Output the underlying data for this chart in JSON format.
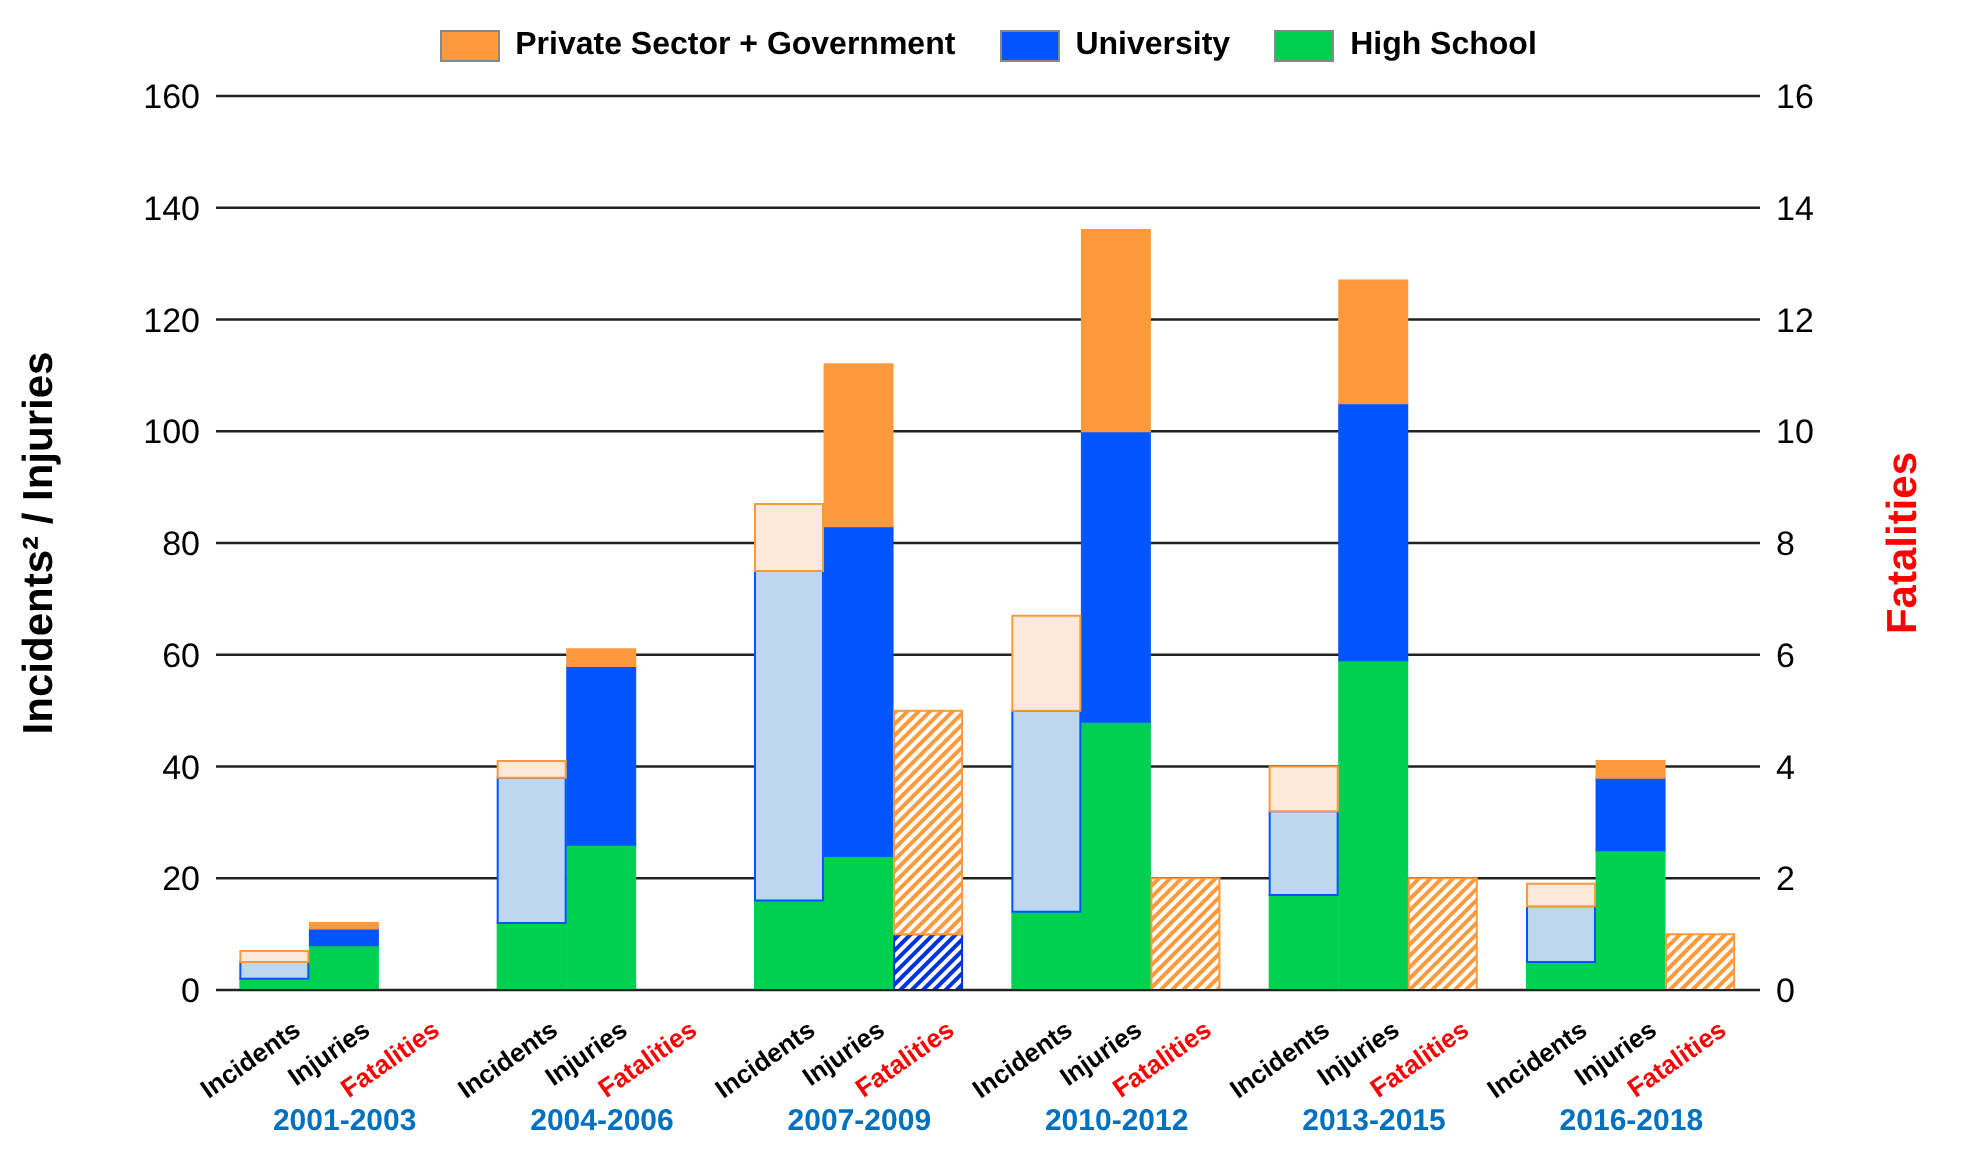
{
  "chart_data": {
    "type": "bar",
    "stacked": true,
    "ylabel": "Incidents² / Injuries",
    "y2label": "Fatalities",
    "categories": [
      "Incidents",
      "Injuries",
      "Fatalities",
      "Incidents",
      "Injuries",
      "Fatalities",
      "Incidents",
      "Injuries",
      "Fatalities",
      "Incidents",
      "Injuries",
      "Fatalities",
      "Incidents",
      "Injuries",
      "Fatalities",
      "Incidents",
      "Injuries",
      "Fatalities"
    ],
    "annotations": [
      "2001-2003",
      "2004-2006",
      "2007-2009",
      "2010-2012",
      "2013-2015",
      "2016-2018"
    ],
    "series": [
      {
        "name": "High School",
        "color": "#00d050",
        "colors": [
          "#00d050",
          "#00d050",
          null,
          "#00d050",
          "#00d050",
          null,
          "#00d050",
          "#00d050",
          null,
          "#00d050",
          "#00d050",
          null,
          "#00d050",
          "#00d050",
          null,
          "#00d050",
          "#00d050",
          null
        ],
        "values": [
          2,
          8,
          null,
          12,
          26,
          null,
          16,
          24,
          null,
          14,
          48,
          null,
          17,
          59,
          null,
          5,
          25,
          null
        ]
      },
      {
        "name": "University",
        "color": "#0055ff",
        "colors": [
          "#bdd7ee",
          "#0055ff",
          null,
          "#bdd7ee",
          "#0055ff",
          null,
          "#bdd7ee",
          "#0055ff",
          null,
          "#bdd7ee",
          "#0055ff",
          null,
          "#bdd7ee",
          "#0055ff",
          null,
          "#bdd7ee",
          "#0055ff",
          null
        ],
        "values": [
          3,
          3,
          null,
          26,
          32,
          null,
          59,
          59,
          null,
          36,
          52,
          null,
          15,
          46,
          null,
          10,
          13,
          null
        ]
      },
      {
        "name": "Private Sector + Government",
        "color": "#ff9a3c",
        "colors": [
          "#fde9d9",
          "#ff9a3c",
          null,
          "#fde9d9",
          "#ff9a3c",
          null,
          "#fde9d9",
          "#ff9a3c",
          null,
          "#fde9d9",
          "#ff9a3c",
          null,
          "#fde9d9",
          "#ff9a3c",
          null,
          "#fde9d9",
          "#ff9a3c",
          null
        ],
        "values": [
          2,
          1,
          null,
          3,
          3,
          null,
          12,
          29,
          null,
          17,
          36,
          null,
          8,
          22,
          null,
          4,
          3,
          null
        ]
      },
      {
        "axis": "y2",
        "color": "#0033dd",
        "values": [
          null,
          null,
          null,
          null,
          null,
          null,
          null,
          null,
          1,
          null,
          null,
          null,
          null,
          null,
          null,
          null,
          null,
          null
        ]
      },
      {
        "axis": "y2",
        "color": "#ff9a3c",
        "values": [
          null,
          null,
          null,
          null,
          null,
          null,
          null,
          null,
          4,
          null,
          null,
          2,
          null,
          null,
          2,
          null,
          null,
          1
        ]
      }
    ],
    "ylim": [
      0,
      160
    ],
    "yticks": [
      0,
      20,
      40,
      60,
      80,
      100,
      120,
      140,
      160
    ],
    "y2lim": [
      0,
      16
    ],
    "y2ticks": [
      0,
      2,
      4,
      6,
      8,
      10,
      12,
      14,
      16
    ],
    "grid": "y",
    "legend": "top"
  }
}
